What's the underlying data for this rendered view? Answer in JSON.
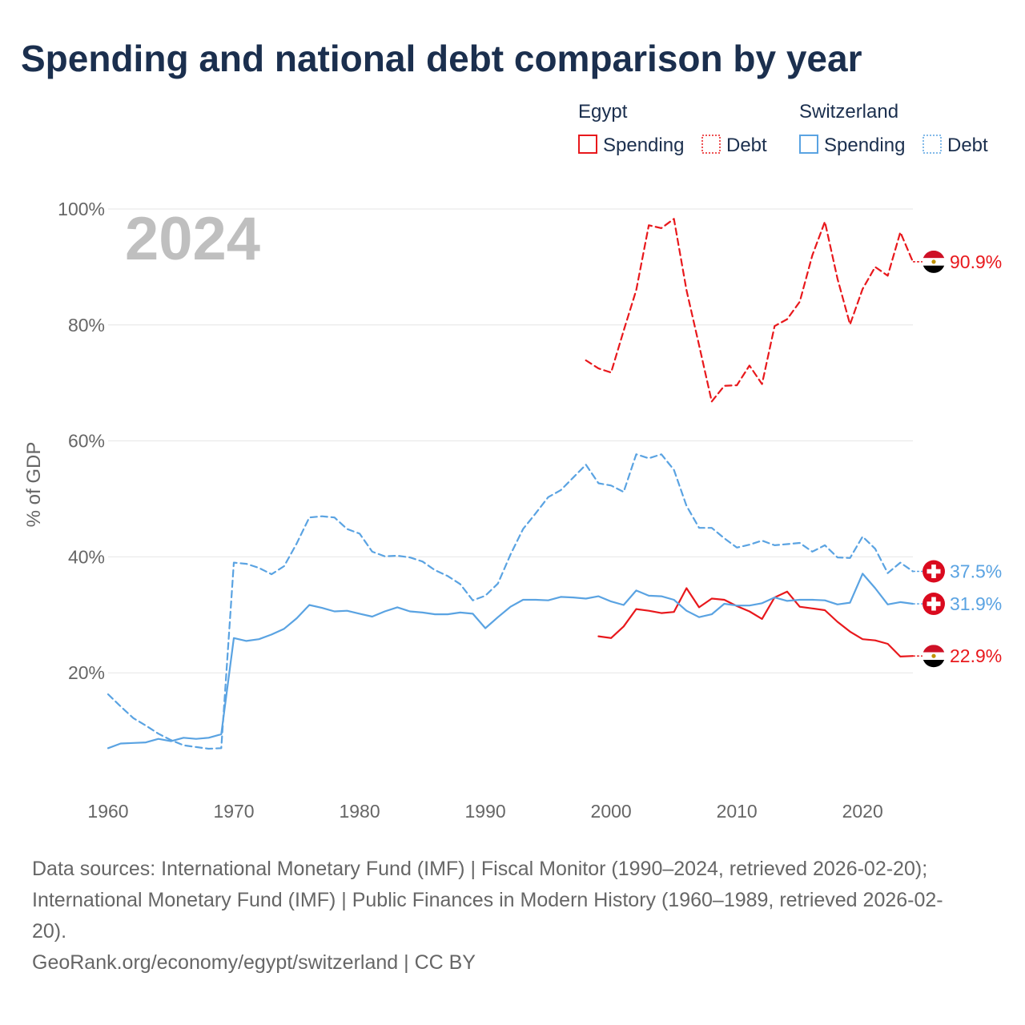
{
  "title": "Spending and national debt comparison by year",
  "colors": {
    "egypt": "#e8181c",
    "switzerland": "#5aa3e2",
    "title": "#1b2f4e",
    "grid": "#e6e6e6",
    "axis_text": "#666666",
    "year": "#bfbfbf"
  },
  "footer": {
    "source_line_1": "Data sources: International Monetary Fund (IMF) | Fiscal Monitor (1990–2024, retrieved 2026-02-20);",
    "source_line_2": "International Monetary Fund (IMF) | Public Finances in Modern History (1960–1989, retrieved 2026-02-",
    "source_line_3": "20).",
    "attribution": "GeoRank.org/economy/egypt/switzerland | CC BY"
  },
  "chart_data": {
    "type": "line",
    "title": "Spending and national debt comparison by year",
    "year_label": "2024",
    "ylabel": "% of GDP",
    "xlabel": "",
    "xlim": [
      1960,
      2024
    ],
    "ylim": [
      0,
      100
    ],
    "x_ticks": [
      1960,
      1970,
      1980,
      1990,
      2000,
      2010,
      2020
    ],
    "x_tick_labels": [
      "1960",
      "1970",
      "1980",
      "1990",
      "2000",
      "2010",
      "2020"
    ],
    "y_ticks": [
      20,
      40,
      60,
      80,
      100
    ],
    "y_tick_labels": [
      "20%",
      "40%",
      "60%",
      "80%",
      "100%"
    ],
    "grid": true,
    "legend": {
      "position": "top-right",
      "groups": [
        {
          "country": "Egypt",
          "items": [
            "Spending",
            "Debt"
          ]
        },
        {
          "country": "Switzerland",
          "items": [
            "Spending",
            "Debt"
          ]
        }
      ]
    },
    "series": [
      {
        "name": "Egypt Debt",
        "country": "Egypt",
        "measure": "Debt",
        "style": "dashed",
        "color": "#e8181c",
        "x": [
          1998,
          1999,
          2000,
          2001,
          2002,
          2003,
          2004,
          2005,
          2006,
          2007,
          2008,
          2009,
          2010,
          2011,
          2012,
          2013,
          2014,
          2015,
          2016,
          2017,
          2018,
          2019,
          2020,
          2021,
          2022,
          2023,
          2024
        ],
        "values": [
          73.9,
          72.5,
          71.8,
          79,
          86,
          97.2,
          96.7,
          98.3,
          86,
          76.5,
          66.8,
          69.5,
          69.6,
          73,
          69.8,
          79.8,
          81,
          84,
          92,
          97.8,
          88,
          80.1,
          86.2,
          90,
          88.5,
          96,
          90.9
        ],
        "end_label": "90.9%"
      },
      {
        "name": "Egypt Spending",
        "country": "Egypt",
        "measure": "Spending",
        "style": "solid",
        "color": "#e8181c",
        "x": [
          1999,
          2000,
          2001,
          2002,
          2003,
          2004,
          2005,
          2006,
          2007,
          2008,
          2009,
          2010,
          2011,
          2012,
          2013,
          2014,
          2015,
          2016,
          2017,
          2018,
          2019,
          2020,
          2021,
          2022,
          2023,
          2024
        ],
        "values": [
          26.3,
          26,
          28,
          31,
          30.7,
          30.3,
          30.5,
          34.6,
          31.3,
          32.8,
          32.6,
          31.5,
          30.6,
          29.3,
          33,
          34,
          31.4,
          31.1,
          30.8,
          28.8,
          27.1,
          25.8,
          25.6,
          25,
          22.8,
          22.9
        ],
        "end_label": "22.9%"
      },
      {
        "name": "Switzerland Debt",
        "country": "Switzerland",
        "measure": "Debt",
        "style": "dashed",
        "color": "#5aa3e2",
        "x": [
          1960,
          1961,
          1962,
          1963,
          1964,
          1965,
          1966,
          1967,
          1968,
          1969,
          1970,
          1971,
          1972,
          1973,
          1974,
          1975,
          1976,
          1977,
          1978,
          1979,
          1980,
          1981,
          1982,
          1983,
          1984,
          1985,
          1986,
          1987,
          1988,
          1989,
          1990,
          1991,
          1992,
          1993,
          1994,
          1995,
          1996,
          1997,
          1998,
          1999,
          2000,
          2001,
          2002,
          2003,
          2004,
          2005,
          2006,
          2007,
          2008,
          2009,
          2010,
          2011,
          2012,
          2013,
          2014,
          2015,
          2016,
          2017,
          2018,
          2019,
          2020,
          2021,
          2022,
          2023,
          2024
        ],
        "values": [
          16.3,
          14.2,
          12.2,
          10.9,
          9.5,
          8.4,
          7.5,
          7.2,
          6.9,
          7,
          39,
          38.8,
          38.1,
          37,
          38.4,
          42.3,
          46.8,
          47,
          46.8,
          44.8,
          44,
          40.9,
          40.1,
          40.2,
          39.9,
          39.2,
          37.7,
          36.7,
          35.3,
          32.5,
          33.3,
          35.4,
          40.4,
          44.8,
          47.5,
          50.3,
          51.5,
          53.7,
          55.9,
          52.7,
          52.3,
          51.2,
          57.7,
          57,
          57.7,
          55,
          48.8,
          45,
          45,
          43.2,
          41.6,
          42.1,
          42.8,
          42,
          42.2,
          42.4,
          40.9,
          42,
          39.9,
          39.8,
          43.5,
          41.4,
          37.2,
          39,
          37.5
        ],
        "end_label": "37.5%"
      },
      {
        "name": "Switzerland Spending",
        "country": "Switzerland",
        "measure": "Spending",
        "style": "solid",
        "color": "#5aa3e2",
        "x": [
          1960,
          1961,
          1962,
          1963,
          1964,
          1965,
          1966,
          1967,
          1968,
          1969,
          1970,
          1971,
          1972,
          1973,
          1974,
          1975,
          1976,
          1977,
          1978,
          1979,
          1980,
          1981,
          1982,
          1983,
          1984,
          1985,
          1986,
          1987,
          1988,
          1989,
          1990,
          1991,
          1992,
          1993,
          1994,
          1995,
          1996,
          1997,
          1998,
          1999,
          2000,
          2001,
          2002,
          2003,
          2004,
          2005,
          2006,
          2007,
          2008,
          2009,
          2010,
          2011,
          2012,
          2013,
          2014,
          2015,
          2016,
          2017,
          2018,
          2019,
          2020,
          2021,
          2022,
          2023,
          2024
        ],
        "values": [
          7,
          7.8,
          7.9,
          8,
          8.6,
          8.2,
          8.8,
          8.6,
          8.8,
          9.4,
          26,
          25.5,
          25.8,
          26.6,
          27.6,
          29.4,
          31.7,
          31.2,
          30.6,
          30.7,
          30.2,
          29.7,
          30.6,
          31.3,
          30.6,
          30.4,
          30.1,
          30.1,
          30.4,
          30.2,
          27.7,
          29.6,
          31.4,
          32.6,
          32.6,
          32.5,
          33.1,
          33,
          32.8,
          33.2,
          32.3,
          31.7,
          34.2,
          33.3,
          33.2,
          32.6,
          30.7,
          29.6,
          30.1,
          31.9,
          31.6,
          31.6,
          32,
          33,
          32.4,
          32.6,
          32.6,
          32.5,
          31.8,
          32.1,
          37.1,
          34.6,
          31.8,
          32.2,
          31.9
        ],
        "end_label": "31.9%"
      }
    ]
  }
}
